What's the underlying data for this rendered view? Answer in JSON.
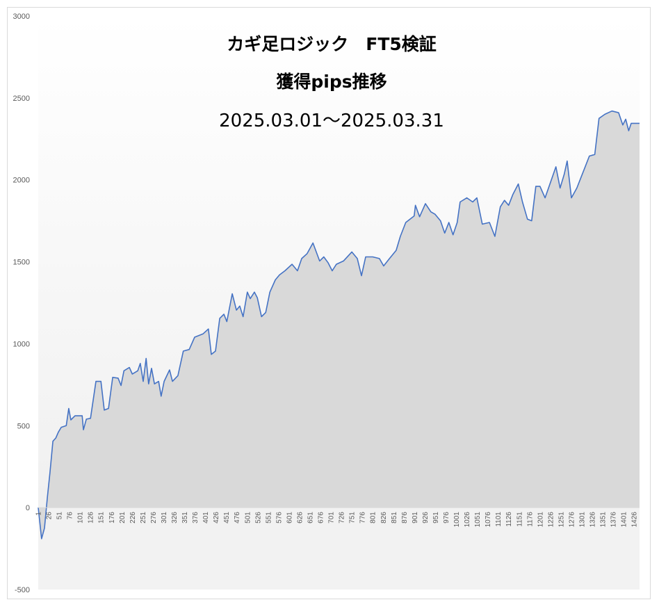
{
  "chart_data": {
    "type": "area",
    "title": "カギ足ロジック　FT5検証",
    "subtitle": "獲得pips推移",
    "period": "2025.03.01～2025.03.31",
    "x": [
      1,
      9,
      16,
      23,
      29,
      36,
      43,
      49,
      56,
      68,
      74,
      79,
      89,
      106,
      109,
      116,
      126,
      139,
      151,
      159,
      169,
      179,
      192,
      199,
      206,
      219,
      226,
      239,
      245,
      252,
      259,
      265,
      272,
      279,
      289,
      295,
      302,
      315,
      322,
      335,
      348,
      362,
      375,
      395,
      408,
      415,
      425,
      435,
      445,
      452,
      465,
      475,
      483,
      491,
      501,
      508,
      518,
      525,
      535,
      545,
      555,
      568,
      578,
      591,
      608,
      621,
      631,
      644,
      658,
      674,
      684,
      694,
      704,
      714,
      731,
      751,
      764,
      774,
      784,
      801,
      817,
      827,
      841,
      857,
      867,
      880,
      900,
      903,
      913,
      927,
      940,
      950,
      963,
      973,
      983,
      993,
      1003,
      1010,
      1026,
      1040,
      1050,
      1063,
      1080,
      1093,
      1106,
      1116,
      1126,
      1136,
      1149,
      1159,
      1171,
      1181,
      1191,
      1201,
      1213,
      1226,
      1239,
      1249,
      1259,
      1266,
      1276,
      1289,
      1299,
      1309,
      1319,
      1332,
      1342,
      1356,
      1373,
      1389,
      1399,
      1406,
      1413,
      1419,
      1439
    ],
    "series": [
      {
        "color": "#4472c4",
        "fill": "#d9d9d9",
        "values": [
          0,
          -190,
          -125,
          65,
          210,
          405,
          425,
          460,
          490,
          500,
          605,
          535,
          560,
          560,
          475,
          540,
          545,
          770,
          770,
          595,
          605,
          795,
          790,
          745,
          835,
          855,
          815,
          835,
          880,
          770,
          910,
          755,
          850,
          755,
          770,
          680,
          770,
          840,
          770,
          805,
          955,
          965,
          1040,
          1060,
          1090,
          935,
          955,
          1155,
          1180,
          1135,
          1305,
          1205,
          1230,
          1165,
          1315,
          1275,
          1315,
          1280,
          1165,
          1190,
          1315,
          1390,
          1420,
          1445,
          1485,
          1445,
          1520,
          1550,
          1615,
          1505,
          1530,
          1495,
          1445,
          1485,
          1505,
          1560,
          1520,
          1415,
          1530,
          1530,
          1520,
          1475,
          1520,
          1570,
          1655,
          1740,
          1780,
          1845,
          1775,
          1855,
          1805,
          1790,
          1750,
          1675,
          1740,
          1665,
          1740,
          1865,
          1890,
          1865,
          1890,
          1730,
          1740,
          1655,
          1835,
          1875,
          1845,
          1910,
          1975,
          1865,
          1760,
          1750,
          1960,
          1960,
          1890,
          1985,
          2080,
          1950,
          2035,
          2115,
          1890,
          1950,
          2015,
          2080,
          2145,
          2155,
          2375,
          2400,
          2420,
          2410,
          2335,
          2370,
          2300,
          2345,
          2345
        ]
      }
    ],
    "xlim": [
      1,
      1439
    ],
    "xticks": [
      1,
      26,
      51,
      76,
      101,
      126,
      151,
      176,
      201,
      226,
      251,
      276,
      301,
      326,
      351,
      376,
      401,
      426,
      451,
      476,
      501,
      526,
      551,
      576,
      601,
      626,
      651,
      676,
      701,
      726,
      751,
      776,
      801,
      826,
      851,
      876,
      901,
      926,
      951,
      976,
      1001,
      1026,
      1051,
      1076,
      1101,
      1126,
      1151,
      1176,
      1201,
      1226,
      1251,
      1276,
      1301,
      1326,
      1351,
      1376,
      1401,
      1426
    ],
    "ylim": [
      -500,
      3000
    ],
    "yticks": [
      -500,
      0,
      500,
      1000,
      1500,
      2000,
      2500,
      3000
    ]
  }
}
